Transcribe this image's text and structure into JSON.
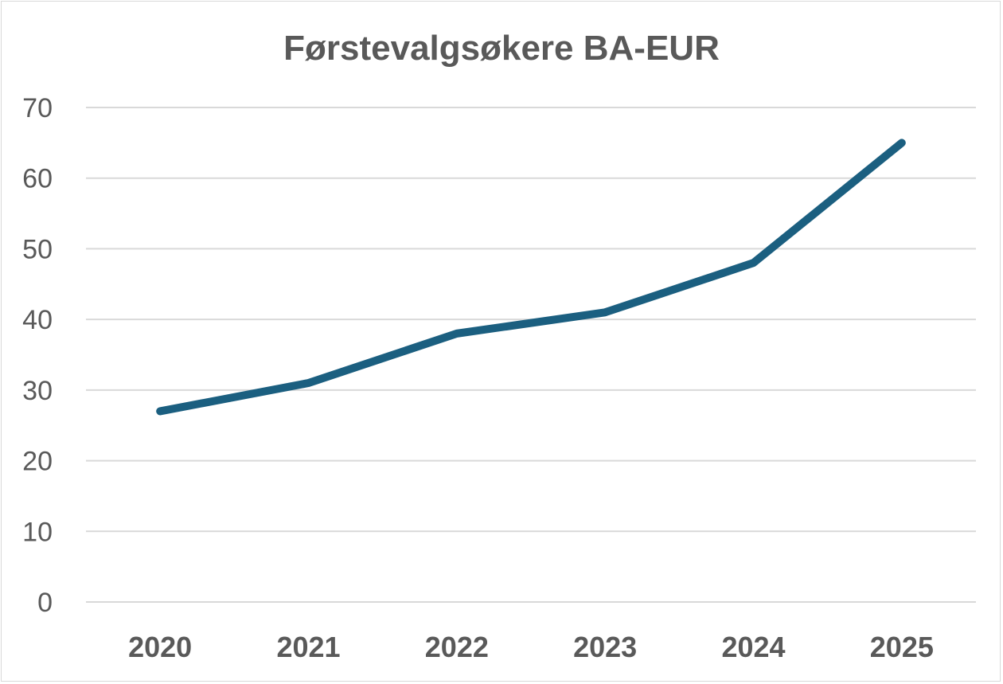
{
  "chart_data": {
    "type": "line",
    "title": "Førstevalgsøkere BA-EUR",
    "xlabel": "",
    "ylabel": "",
    "categories": [
      "2020",
      "2021",
      "2022",
      "2023",
      "2024",
      "2025"
    ],
    "series": [
      {
        "values": [
          27,
          31,
          38,
          41,
          48,
          65
        ],
        "color": "#1b5f80"
      }
    ],
    "ylim": [
      0,
      70
    ],
    "yticks": [
      "0",
      "10",
      "20",
      "30",
      "40",
      "50",
      "60",
      "70"
    ],
    "grid": true,
    "legend": "none"
  }
}
